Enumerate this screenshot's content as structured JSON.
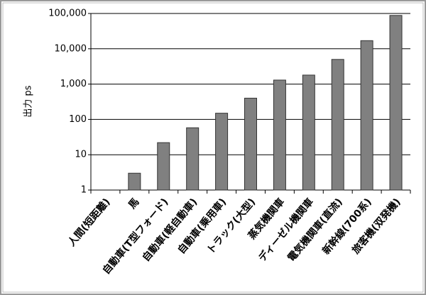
{
  "chart_data": {
    "type": "bar",
    "ylabel": "出力 ps",
    "categories": [
      "人間(短距離)",
      "馬",
      "自動車(T型フォード)",
      "自動車(軽自動車)",
      "自動車(乗用車)",
      "トラック(大型)",
      "蒸気機関車",
      "ディーゼル機関車",
      "電気機関車(直流)",
      "新幹線(700系)",
      "旅客機(双発機)"
    ],
    "values": [
      1,
      3,
      22,
      58,
      150,
      400,
      1300,
      1800,
      5000,
      17000,
      88000
    ],
    "color": "#808080",
    "log_scale": true,
    "ylim": [
      1,
      100000
    ],
    "yticks": [
      1,
      10,
      100,
      {
        "value": 1000,
        "label": "1,000"
      },
      {
        "value": 10000,
        "label": "10,000"
      },
      {
        "value": 100000,
        "label": "100,000"
      }
    ],
    "grid": true
  }
}
